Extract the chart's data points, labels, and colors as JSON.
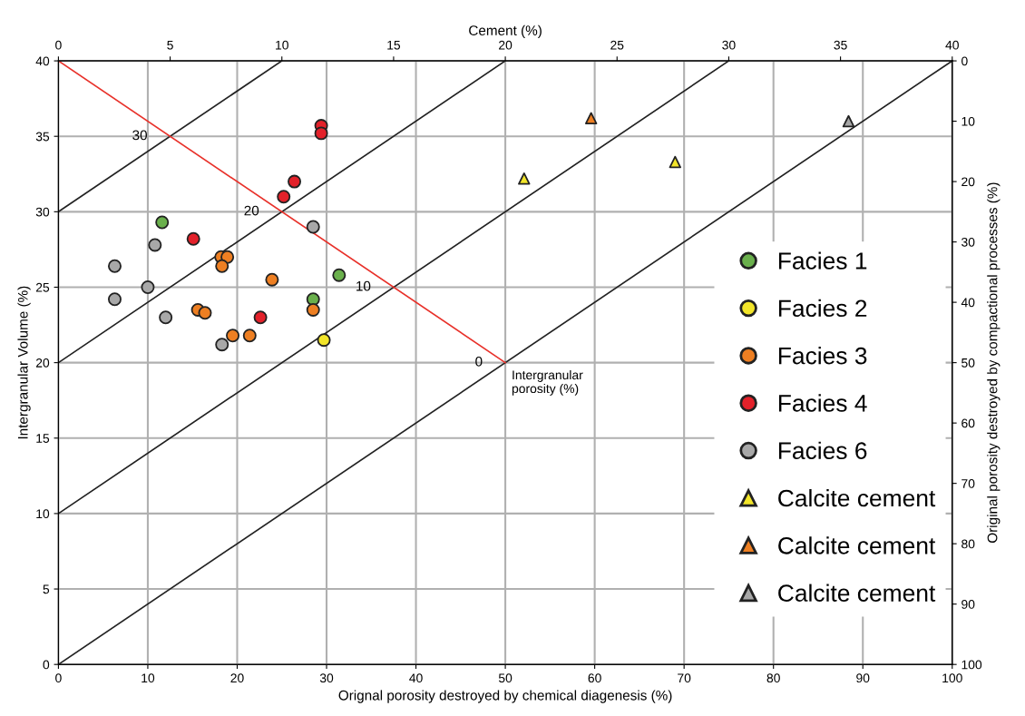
{
  "chart_data": {
    "type": "scatter",
    "xlabel": "Orignal porosity destroyed by chemical diagenesis (%)",
    "ylabel": "Intergranular Volume (%)",
    "x2label": "Cement (%)",
    "y2label": "Original porosity destroyed by compactional processes (%)",
    "xlim": [
      0,
      100
    ],
    "xticks": [
      0,
      10,
      20,
      30,
      40,
      50,
      60,
      70,
      80,
      90,
      100
    ],
    "ylim": [
      0,
      40
    ],
    "yticks": [
      0,
      5,
      10,
      15,
      20,
      25,
      30,
      35,
      40
    ],
    "x2lim": [
      0,
      40
    ],
    "x2ticks": [
      0,
      5,
      10,
      15,
      20,
      25,
      30,
      35,
      40
    ],
    "y2lim": [
      100,
      0
    ],
    "y2ticks": [
      0,
      10,
      20,
      30,
      40,
      50,
      60,
      70,
      80,
      90,
      100
    ],
    "grid": true,
    "legend": "right",
    "series": [
      {
        "type": "line",
        "color": "#222222",
        "x": [
          0,
          25
        ],
        "values": [
          30,
          40
        ]
      },
      {
        "type": "line",
        "color": "#222222",
        "x": [
          0,
          50
        ],
        "values": [
          20,
          40
        ]
      },
      {
        "type": "line",
        "color": "#222222",
        "x": [
          0,
          75
        ],
        "values": [
          10,
          40
        ]
      },
      {
        "type": "line",
        "color": "#222222",
        "x": [
          0,
          100
        ],
        "values": [
          0,
          40
        ]
      },
      {
        "type": "line",
        "color": "#e8312a",
        "x": [
          0,
          50
        ],
        "values": [
          40,
          20
        ]
      },
      {
        "name": "Facies 1",
        "marker": "circle",
        "color": "#6ab04c",
        "x": [
          11.6,
          31.4,
          28.5
        ],
        "values": [
          29.3,
          25.8,
          24.2
        ]
      },
      {
        "name": "Facies 2",
        "marker": "circle",
        "color": "#f2e52a",
        "x": [
          29.7
        ],
        "values": [
          21.5
        ]
      },
      {
        "name": "Facies 3",
        "marker": "circle",
        "color": "#ee7f22",
        "x": [
          18.2,
          18.9,
          18.3,
          23.9,
          15.6,
          16.4,
          19.5,
          21.4,
          28.5
        ],
        "values": [
          27.0,
          27.0,
          26.4,
          25.5,
          23.5,
          23.3,
          21.8,
          21.8,
          23.5
        ]
      },
      {
        "name": "Facies 4",
        "marker": "circle",
        "color": "#e3212a",
        "x": [
          29.4,
          29.4,
          26.4,
          25.2,
          15.1,
          22.6
        ],
        "values": [
          35.7,
          35.2,
          32.0,
          31.0,
          28.2,
          23.0
        ]
      },
      {
        "name": "Facies 6",
        "marker": "circle",
        "color": "#a8a8a8",
        "x": [
          6.3,
          6.3,
          10.0,
          10.8,
          12.0,
          18.3,
          28.5
        ],
        "values": [
          26.4,
          24.2,
          25.0,
          27.8,
          23.0,
          21.2,
          29.0
        ]
      },
      {
        "name": "Calcite cement",
        "marker": "triangle",
        "color": "#f2e52a",
        "x": [
          52.1,
          69.0
        ],
        "values": [
          32.2,
          33.3
        ]
      },
      {
        "name": "Calcite cement",
        "marker": "triangle",
        "color": "#ee7f22",
        "x": [
          59.6
        ],
        "values": [
          36.2
        ]
      },
      {
        "name": "Calcite cement",
        "marker": "triangle",
        "color": "#a8a8a8",
        "x": [
          88.4
        ],
        "values": [
          36.0
        ]
      }
    ],
    "annotations": [
      {
        "text": "30",
        "x": 12.5,
        "y": 35
      },
      {
        "text": "20",
        "x": 25,
        "y": 30
      },
      {
        "text": "10",
        "x": 37.5,
        "y": 25
      },
      {
        "text": "0",
        "x": 50,
        "y": 20
      },
      {
        "text": "Intergranular\nporosity (%)",
        "x": 50,
        "y": 20
      }
    ]
  }
}
